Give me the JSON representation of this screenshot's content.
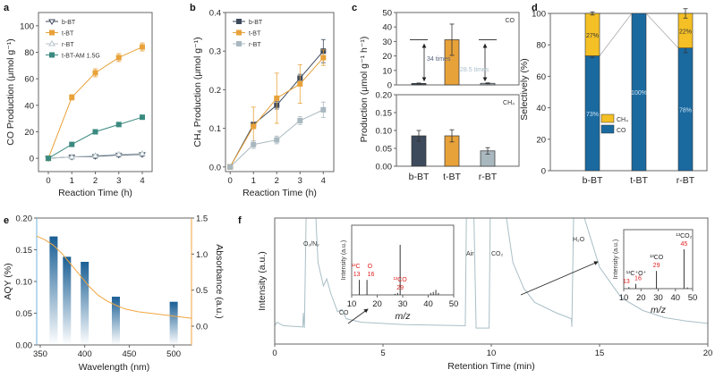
{
  "panel_labels": [
    "a",
    "b",
    "c",
    "d",
    "e",
    "f"
  ],
  "chart_data": [
    {
      "id": "a",
      "type": "line",
      "xlabel": "Reaction Time (h)",
      "ylabel": "CO Production (μmol g⁻¹)",
      "xlim": [
        -0.42,
        4.42
      ],
      "ylim": [
        -10,
        110
      ],
      "xticks": [
        0,
        1,
        2,
        3,
        4
      ],
      "yticks": [
        0,
        20,
        40,
        60,
        80,
        100
      ],
      "x": [
        0,
        1,
        2,
        3,
        4
      ],
      "legend_position": "top-left",
      "series": [
        {
          "name": "b-BT",
          "color": "#3d4a5c",
          "marker": "triangle-down-open",
          "values": [
            0,
            1,
            1.5,
            2.5,
            3
          ],
          "errors": [
            0.5,
            1.5,
            1.5,
            1.5,
            1.5
          ]
        },
        {
          "name": "t-BT",
          "color": "#e8a23a",
          "marker": "square",
          "values": [
            0,
            46,
            64.5,
            76,
            84
          ],
          "errors": [
            1,
            2,
            3,
            3,
            3
          ]
        },
        {
          "name": "r-BT",
          "color": "#b8c6cc",
          "marker": "triangle-up-open",
          "values": [
            0,
            1,
            2,
            3,
            3.5
          ],
          "errors": [
            0.5,
            1,
            1,
            1,
            1
          ]
        },
        {
          "name": "t-BT-AM 1.5G",
          "color": "#3a8a80",
          "marker": "square",
          "values": [
            0,
            10.5,
            20,
            25.5,
            31
          ],
          "errors": [
            0.5,
            1,
            1,
            1.2,
            1.2
          ]
        }
      ]
    },
    {
      "id": "b",
      "type": "line",
      "xlabel": "Reaction Time (h)",
      "ylabel": "CH₄ Production (μmol g⁻¹)",
      "xlim": [
        -0.2,
        4.45
      ],
      "ylim": [
        -0.012,
        0.4
      ],
      "xticks": [
        0,
        1,
        2,
        3,
        4
      ],
      "yticks": [
        0.0,
        0.1,
        0.2,
        0.3,
        0.4
      ],
      "x": [
        0,
        1,
        2,
        3,
        4
      ],
      "legend_position": "top-left",
      "series": [
        {
          "name": "b-BT",
          "color": "#3d4a5c",
          "marker": "square",
          "values": [
            0,
            0.11,
            0.16,
            0.23,
            0.3
          ],
          "errors": [
            0,
            0.005,
            0.01,
            0.01,
            0.03
          ]
        },
        {
          "name": "t-BT",
          "color": "#e8a23a",
          "marker": "square",
          "values": [
            0,
            0.105,
            0.178,
            0.215,
            0.283
          ],
          "errors": [
            0,
            0.05,
            0.065,
            0.05,
            0.02
          ]
        },
        {
          "name": "r-BT",
          "color": "#a9b8bf",
          "marker": "square",
          "values": [
            0,
            0.058,
            0.07,
            0.12,
            0.148
          ],
          "errors": [
            0,
            0.01,
            0.01,
            0.01,
            0.02
          ]
        }
      ]
    },
    {
      "id": "c",
      "type": "bar",
      "ylabel": "Production (μmol g⁻¹ h⁻¹)",
      "categories": [
        "b-BT",
        "t-BT",
        "r-BT"
      ],
      "colors": [
        "#3d4a5c",
        "#e8a23a",
        "#a9b8bf"
      ],
      "subplots": [
        {
          "name": "CO",
          "ylim": [
            0,
            50
          ],
          "yticks": [
            0,
            10,
            20,
            30,
            40,
            50
          ],
          "values": [
            1,
            31.2,
            1.1
          ],
          "errors": [
            0.3,
            10.8,
            0.3
          ]
        },
        {
          "name": "CH₄",
          "ylim": [
            0,
            0.2
          ],
          "yticks": [
            0.0,
            0.05,
            0.1,
            0.15,
            0.2
          ],
          "values": [
            0.085,
            0.085,
            0.043
          ],
          "errors": [
            0.015,
            0.017,
            0.009
          ]
        }
      ],
      "annotations": [
        {
          "text": "34 times",
          "color": "#55627a"
        },
        {
          "text": "28.5 times",
          "color": "#a9bfc9"
        }
      ]
    },
    {
      "id": "d",
      "type": "bar",
      "stacked": true,
      "ylabel": "Selectively (%)",
      "categories": [
        "b-BT",
        "t-BT",
        "r-BT"
      ],
      "ylim": [
        0,
        100
      ],
      "yticks": [
        0,
        20,
        40,
        60,
        80,
        100
      ],
      "series": [
        {
          "name": "CO",
          "color": "#1a6aa0",
          "values": [
            73,
            100,
            78
          ],
          "labels": [
            "73%",
            "100%",
            "78%"
          ],
          "errors": [
            1,
            0,
            3
          ]
        },
        {
          "name": "CH₄",
          "color": "#f5c026",
          "values": [
            27,
            0,
            22
          ],
          "labels": [
            "27%",
            "",
            "22%"
          ],
          "errors": [
            1,
            0,
            3
          ]
        }
      ],
      "legend_position": "center-left"
    },
    {
      "id": "e",
      "type": "bar",
      "xlabel": "Wavelength (nm)",
      "ylabel": "AQY (%)",
      "y2label": "Absorbance (a.u.)",
      "xlim": [
        346,
        520
      ],
      "ylim": [
        0,
        0.2
      ],
      "y2lim": [
        -0.26,
        1.5
      ],
      "xticks": [
        350,
        400,
        450,
        500
      ],
      "yticks": [
        0.0,
        0.05,
        0.1,
        0.15,
        0.2
      ],
      "y2ticks": [
        0.0,
        0.5,
        1.0,
        1.5
      ],
      "bars": {
        "x": [
          365,
          380,
          400,
          435,
          500
        ],
        "values": [
          0.171,
          0.139,
          0.131,
          0.076,
          0.068
        ],
        "color": "#1a5f95"
      },
      "absorbance": {
        "color": "#f0a640",
        "x": [
          346,
          355,
          365,
          375,
          385,
          395,
          405,
          415,
          425,
          435,
          445,
          460,
          480,
          500,
          520
        ],
        "y": [
          1.25,
          1.2,
          1.12,
          1.0,
          0.85,
          0.7,
          0.55,
          0.43,
          0.35,
          0.29,
          0.24,
          0.2,
          0.17,
          0.14,
          0.11
        ]
      }
    },
    {
      "id": "f",
      "type": "line",
      "xlabel": "Retention Time (min)",
      "ylabel": "Intensity (a.u.)",
      "xlim": [
        0,
        20
      ],
      "xticks": [
        0,
        5,
        10,
        15,
        20
      ],
      "ylim": [
        0,
        100
      ],
      "color": "#a9bfc6",
      "trace": [
        [
          0,
          8
        ],
        [
          0.1,
          11
        ],
        [
          0.4,
          8
        ],
        [
          1.3,
          7
        ],
        [
          1.32,
          19
        ],
        [
          1.37,
          6
        ],
        [
          1.45,
          100
        ],
        [
          1.9,
          100
        ],
        [
          2.0,
          62
        ],
        [
          2.25,
          42
        ],
        [
          2.4,
          48
        ],
        [
          2.6,
          35
        ],
        [
          2.9,
          20
        ],
        [
          3.1,
          22
        ],
        [
          3.3,
          14
        ],
        [
          4,
          11
        ],
        [
          6,
          9
        ],
        [
          8.8,
          8
        ],
        [
          8.85,
          100
        ],
        [
          9.2,
          100
        ],
        [
          9.3,
          6
        ],
        [
          9.9,
          6
        ],
        [
          9.95,
          100
        ],
        [
          10.7,
          100
        ],
        [
          11,
          62
        ],
        [
          11.5,
          40
        ],
        [
          12,
          28
        ],
        [
          13,
          19
        ],
        [
          13.7,
          14
        ],
        [
          13.72,
          7
        ],
        [
          13.8,
          100
        ],
        [
          14.3,
          100
        ],
        [
          15,
          58
        ],
        [
          16,
          32
        ],
        [
          17,
          21
        ],
        [
          18,
          15
        ],
        [
          19,
          12
        ],
        [
          20,
          10
        ]
      ],
      "peak_labels": [
        "O₂/N₂",
        "CO",
        "Air",
        "CO₂",
        "H₂O"
      ],
      "insets": [
        {
          "xlabel": "m/z",
          "ylabel": "Intensity (a.u.)",
          "xlim": [
            10,
            50
          ],
          "xticks": [
            10,
            20,
            30,
            40,
            50
          ],
          "peaks": [
            [
              13,
              0.3
            ],
            [
              16,
              0.3
            ],
            [
              27,
              0.02
            ],
            [
              28,
              0.04
            ],
            [
              29,
              1.0
            ],
            [
              41,
              0.04
            ],
            [
              42,
              0.06
            ],
            [
              43,
              0.1
            ],
            [
              44,
              0.04
            ]
          ],
          "annotations": [
            {
              "name": "¹³C",
              "mz": "13"
            },
            {
              "name": "O",
              "mz": "16"
            },
            {
              "name": "¹³CO",
              "mz": "29"
            }
          ]
        },
        {
          "xlabel": "m/z",
          "ylabel": "Intensity (a.u.)",
          "xlim": [
            10,
            50
          ],
          "xticks": [
            10,
            20,
            30,
            40,
            50
          ],
          "peaks": [
            [
              13,
              0.04
            ],
            [
              17,
              0.12
            ],
            [
              29,
              0.45
            ],
            [
              45,
              1.0
            ],
            [
              47,
              0.03
            ]
          ],
          "annotations": [
            {
              "name": "¹³C⁺O⁺",
              "mz": "13"
            },
            {
              "name": "",
              "mz": "16"
            },
            {
              "name": "¹³CO",
              "mz": "29"
            },
            {
              "name": "¹³CO₂",
              "mz": "45"
            }
          ]
        }
      ]
    }
  ]
}
